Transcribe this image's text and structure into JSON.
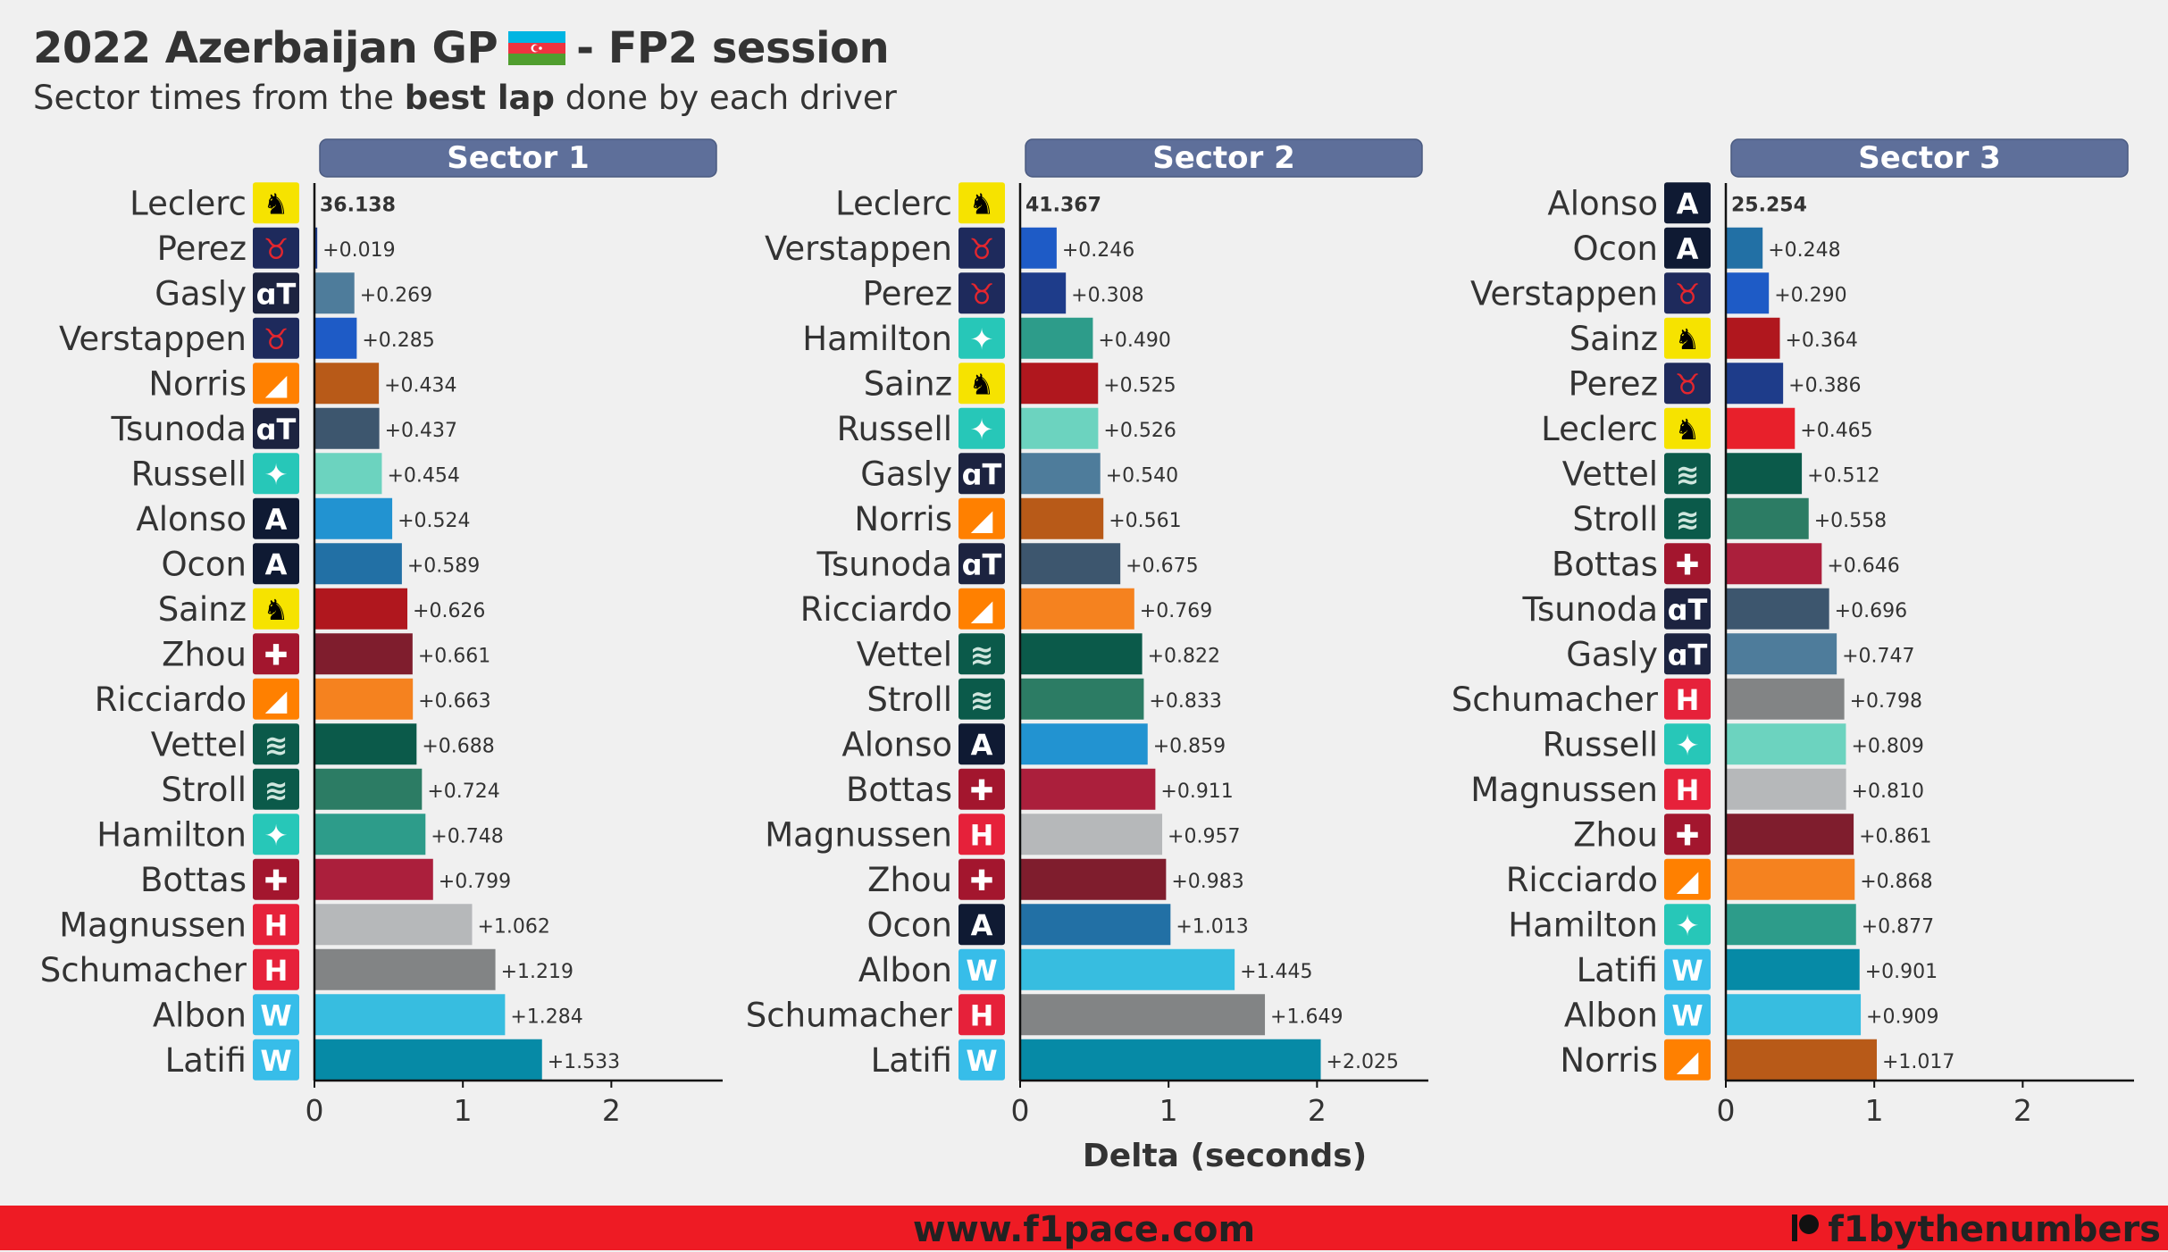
{
  "header": {
    "title_main": "2022 Azerbaijan GP",
    "title_rest": "- FP2 session",
    "subtitle_pre": "Sector times from the",
    "subtitle_bold": "best lap",
    "subtitle_post": "done by each driver"
  },
  "footer": {
    "website": "www.f1pace.com",
    "handle": "f1bythenumbers"
  },
  "team_logos": {
    "Ferrari": {
      "bg": "#f6e300",
      "fg": "#000000",
      "glyph": "♞",
      "icon": "prancing-horse-icon"
    },
    "Red Bull": {
      "bg": "#1e2a5c",
      "fg": "#e3262e",
      "glyph": "♉",
      "icon": "red-bull-icon"
    },
    "AlphaTauri": {
      "bg": "#1c2340",
      "fg": "#ffffff",
      "glyph": "ɑT",
      "icon": "alphatauri-icon"
    },
    "McLaren": {
      "bg": "#ff8000",
      "fg": "#ffffff",
      "glyph": "◢",
      "icon": "mclaren-swoosh-icon"
    },
    "Mercedes": {
      "bg": "#27c7b8",
      "fg": "#ffffff",
      "glyph": "✦",
      "icon": "mercedes-star-icon"
    },
    "Alpine": {
      "bg": "#0f1a33",
      "fg": "#ffffff",
      "glyph": "A",
      "icon": "alpine-icon"
    },
    "Alfa Romeo": {
      "bg": "#a3162e",
      "fg": "#ffffff",
      "glyph": "✚",
      "icon": "alfa-romeo-icon"
    },
    "Aston Martin": {
      "bg": "#0b5a4a",
      "fg": "#cfe6de",
      "glyph": "≋",
      "icon": "aston-martin-wings-icon"
    },
    "Haas": {
      "bg": "#e6213a",
      "fg": "#ffffff",
      "glyph": "H",
      "icon": "haas-icon"
    },
    "Williams": {
      "bg": "#37bde9",
      "fg": "#ffffff",
      "glyph": "W",
      "icon": "williams-icon"
    }
  },
  "chart_data": [
    {
      "type": "bar",
      "title": "Sector 1",
      "xlabel": "",
      "xlim": [
        0,
        2.75
      ],
      "xticks": [
        0,
        1,
        2
      ],
      "leader_time": "36.138",
      "drivers": [
        {
          "name": "Leclerc",
          "team": "Ferrari",
          "delta": 0,
          "label": "36.138",
          "color": "#e8202b"
        },
        {
          "name": "Perez",
          "team": "Red Bull",
          "delta": 0.019,
          "label": "+0.019",
          "color": "#1e3c8a"
        },
        {
          "name": "Gasly",
          "team": "AlphaTauri",
          "delta": 0.269,
          "label": "+0.269",
          "color": "#4e7c9b"
        },
        {
          "name": "Verstappen",
          "team": "Red Bull",
          "delta": 0.285,
          "label": "+0.285",
          "color": "#1e5bc6"
        },
        {
          "name": "Norris",
          "team": "McLaren",
          "delta": 0.434,
          "label": "+0.434",
          "color": "#b85a18"
        },
        {
          "name": "Tsunoda",
          "team": "AlphaTauri",
          "delta": 0.437,
          "label": "+0.437",
          "color": "#3d566e"
        },
        {
          "name": "Russell",
          "team": "Mercedes",
          "delta": 0.454,
          "label": "+0.454",
          "color": "#6cd3bf"
        },
        {
          "name": "Alonso",
          "team": "Alpine",
          "delta": 0.524,
          "label": "+0.524",
          "color": "#2293d1"
        },
        {
          "name": "Ocon",
          "team": "Alpine",
          "delta": 0.589,
          "label": "+0.589",
          "color": "#2270a5"
        },
        {
          "name": "Sainz",
          "team": "Ferrari",
          "delta": 0.626,
          "label": "+0.626",
          "color": "#b0171e"
        },
        {
          "name": "Zhou",
          "team": "Alfa Romeo",
          "delta": 0.661,
          "label": "+0.661",
          "color": "#7f1d2d"
        },
        {
          "name": "Ricciardo",
          "team": "McLaren",
          "delta": 0.663,
          "label": "+0.663",
          "color": "#f5821f"
        },
        {
          "name": "Vettel",
          "team": "Aston Martin",
          "delta": 0.688,
          "label": "+0.688",
          "color": "#0b5a4a"
        },
        {
          "name": "Stroll",
          "team": "Aston Martin",
          "delta": 0.724,
          "label": "+0.724",
          "color": "#2c7c64"
        },
        {
          "name": "Hamilton",
          "team": "Mercedes",
          "delta": 0.748,
          "label": "+0.748",
          "color": "#2d9c8a"
        },
        {
          "name": "Bottas",
          "team": "Alfa Romeo",
          "delta": 0.799,
          "label": "+0.799",
          "color": "#ab1f3c"
        },
        {
          "name": "Magnussen",
          "team": "Haas",
          "delta": 1.062,
          "label": "+1.062",
          "color": "#b6b8ba"
        },
        {
          "name": "Schumacher",
          "team": "Haas",
          "delta": 1.219,
          "label": "+1.219",
          "color": "#828485"
        },
        {
          "name": "Albon",
          "team": "Williams",
          "delta": 1.284,
          "label": "+1.284",
          "color": "#37bde0"
        },
        {
          "name": "Latifi",
          "team": "Williams",
          "delta": 1.533,
          "label": "+1.533",
          "color": "#068aa6"
        }
      ]
    },
    {
      "type": "bar",
      "title": "Sector 2",
      "xlabel": "Delta (seconds)",
      "xlim": [
        0,
        2.75
      ],
      "xticks": [
        0,
        1,
        2
      ],
      "leader_time": "41.367",
      "drivers": [
        {
          "name": "Leclerc",
          "team": "Ferrari",
          "delta": 0,
          "label": "41.367",
          "color": "#e8202b"
        },
        {
          "name": "Verstappen",
          "team": "Red Bull",
          "delta": 0.246,
          "label": "+0.246",
          "color": "#1e5bc6"
        },
        {
          "name": "Perez",
          "team": "Red Bull",
          "delta": 0.308,
          "label": "+0.308",
          "color": "#1e3c8a"
        },
        {
          "name": "Hamilton",
          "team": "Mercedes",
          "delta": 0.49,
          "label": "+0.490",
          "color": "#2d9c8a"
        },
        {
          "name": "Sainz",
          "team": "Ferrari",
          "delta": 0.525,
          "label": "+0.525",
          "color": "#b0171e"
        },
        {
          "name": "Russell",
          "team": "Mercedes",
          "delta": 0.526,
          "label": "+0.526",
          "color": "#6cd3bf"
        },
        {
          "name": "Gasly",
          "team": "AlphaTauri",
          "delta": 0.54,
          "label": "+0.540",
          "color": "#4e7c9b"
        },
        {
          "name": "Norris",
          "team": "McLaren",
          "delta": 0.561,
          "label": "+0.561",
          "color": "#b85a18"
        },
        {
          "name": "Tsunoda",
          "team": "AlphaTauri",
          "delta": 0.675,
          "label": "+0.675",
          "color": "#3d566e"
        },
        {
          "name": "Ricciardo",
          "team": "McLaren",
          "delta": 0.769,
          "label": "+0.769",
          "color": "#f5821f"
        },
        {
          "name": "Vettel",
          "team": "Aston Martin",
          "delta": 0.822,
          "label": "+0.822",
          "color": "#0b5a4a"
        },
        {
          "name": "Stroll",
          "team": "Aston Martin",
          "delta": 0.833,
          "label": "+0.833",
          "color": "#2c7c64"
        },
        {
          "name": "Alonso",
          "team": "Alpine",
          "delta": 0.859,
          "label": "+0.859",
          "color": "#2293d1"
        },
        {
          "name": "Bottas",
          "team": "Alfa Romeo",
          "delta": 0.911,
          "label": "+0.911",
          "color": "#ab1f3c"
        },
        {
          "name": "Magnussen",
          "team": "Haas",
          "delta": 0.957,
          "label": "+0.957",
          "color": "#b6b8ba"
        },
        {
          "name": "Zhou",
          "team": "Alfa Romeo",
          "delta": 0.983,
          "label": "+0.983",
          "color": "#7f1d2d"
        },
        {
          "name": "Ocon",
          "team": "Alpine",
          "delta": 1.013,
          "label": "+1.013",
          "color": "#2270a5"
        },
        {
          "name": "Albon",
          "team": "Williams",
          "delta": 1.445,
          "label": "+1.445",
          "color": "#37bde0"
        },
        {
          "name": "Schumacher",
          "team": "Haas",
          "delta": 1.649,
          "label": "+1.649",
          "color": "#828485"
        },
        {
          "name": "Latifi",
          "team": "Williams",
          "delta": 2.025,
          "label": "+2.025",
          "color": "#068aa6"
        }
      ]
    },
    {
      "type": "bar",
      "title": "Sector 3",
      "xlabel": "",
      "xlim": [
        0,
        2.75
      ],
      "xticks": [
        0,
        1,
        2
      ],
      "leader_time": "25.254",
      "drivers": [
        {
          "name": "Alonso",
          "team": "Alpine",
          "delta": 0,
          "label": "25.254",
          "color": "#2293d1"
        },
        {
          "name": "Ocon",
          "team": "Alpine",
          "delta": 0.248,
          "label": "+0.248",
          "color": "#2270a5"
        },
        {
          "name": "Verstappen",
          "team": "Red Bull",
          "delta": 0.29,
          "label": "+0.290",
          "color": "#1e5bc6"
        },
        {
          "name": "Sainz",
          "team": "Ferrari",
          "delta": 0.364,
          "label": "+0.364",
          "color": "#b0171e"
        },
        {
          "name": "Perez",
          "team": "Red Bull",
          "delta": 0.386,
          "label": "+0.386",
          "color": "#1e3c8a"
        },
        {
          "name": "Leclerc",
          "team": "Ferrari",
          "delta": 0.465,
          "label": "+0.465",
          "color": "#e8202b"
        },
        {
          "name": "Vettel",
          "team": "Aston Martin",
          "delta": 0.512,
          "label": "+0.512",
          "color": "#0b5a4a"
        },
        {
          "name": "Stroll",
          "team": "Aston Martin",
          "delta": 0.558,
          "label": "+0.558",
          "color": "#2c7c64"
        },
        {
          "name": "Bottas",
          "team": "Alfa Romeo",
          "delta": 0.646,
          "label": "+0.646",
          "color": "#ab1f3c"
        },
        {
          "name": "Tsunoda",
          "team": "AlphaTauri",
          "delta": 0.696,
          "label": "+0.696",
          "color": "#3d566e"
        },
        {
          "name": "Gasly",
          "team": "AlphaTauri",
          "delta": 0.747,
          "label": "+0.747",
          "color": "#4e7c9b"
        },
        {
          "name": "Schumacher",
          "team": "Haas",
          "delta": 0.798,
          "label": "+0.798",
          "color": "#828485"
        },
        {
          "name": "Russell",
          "team": "Mercedes",
          "delta": 0.809,
          "label": "+0.809",
          "color": "#6cd3bf"
        },
        {
          "name": "Magnussen",
          "team": "Haas",
          "delta": 0.81,
          "label": "+0.810",
          "color": "#b6b8ba"
        },
        {
          "name": "Zhou",
          "team": "Alfa Romeo",
          "delta": 0.861,
          "label": "+0.861",
          "color": "#7f1d2d"
        },
        {
          "name": "Ricciardo",
          "team": "McLaren",
          "delta": 0.868,
          "label": "+0.868",
          "color": "#f5821f"
        },
        {
          "name": "Hamilton",
          "team": "Mercedes",
          "delta": 0.877,
          "label": "+0.877",
          "color": "#2d9c8a"
        },
        {
          "name": "Latifi",
          "team": "Williams",
          "delta": 0.901,
          "label": "+0.901",
          "color": "#068aa6"
        },
        {
          "name": "Albon",
          "team": "Williams",
          "delta": 0.909,
          "label": "+0.909",
          "color": "#37bde0"
        },
        {
          "name": "Norris",
          "team": "McLaren",
          "delta": 1.017,
          "label": "+1.017",
          "color": "#b85a18"
        }
      ]
    }
  ]
}
